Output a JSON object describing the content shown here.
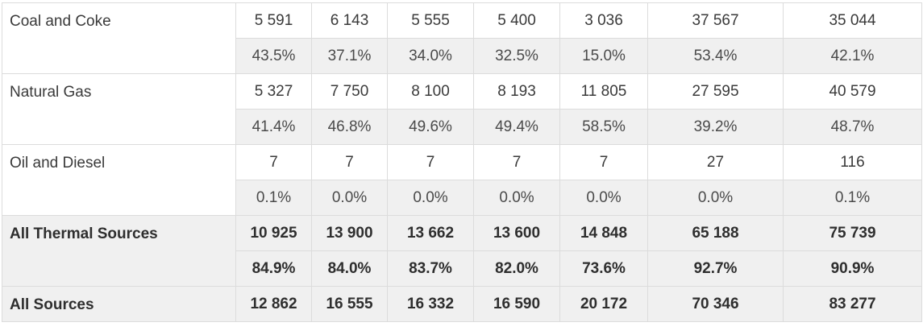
{
  "rows": [
    {
      "label": "Coal and Coke",
      "values": [
        "5 591",
        "6 143",
        "5 555",
        "5 400",
        "3 036",
        "37 567",
        "35 044"
      ],
      "shares": [
        "43.5%",
        "37.1%",
        "34.0%",
        "32.5%",
        "15.0%",
        "53.4%",
        "42.1%"
      ]
    },
    {
      "label": "Natural Gas",
      "values": [
        "5 327",
        "7 750",
        "8 100",
        "8 193",
        "11 805",
        "27 595",
        "40 579"
      ],
      "shares": [
        "41.4%",
        "46.8%",
        "49.6%",
        "49.4%",
        "58.5%",
        "39.2%",
        "48.7%"
      ]
    },
    {
      "label": "Oil and Diesel",
      "values": [
        "7",
        "7",
        "7",
        "7",
        "7",
        "27",
        "116"
      ],
      "shares": [
        "0.1%",
        "0.0%",
        "0.0%",
        "0.0%",
        "0.0%",
        "0.0%",
        "0.1%"
      ]
    },
    {
      "label": "All Thermal Sources",
      "values": [
        "10 925",
        "13 900",
        "13 662",
        "13 600",
        "14 848",
        "65 188",
        "75 739"
      ],
      "shares": [
        "84.9%",
        "84.0%",
        "83.7%",
        "82.0%",
        "73.6%",
        "92.7%",
        "90.9%"
      ]
    },
    {
      "label": "All Sources",
      "values": [
        "12 862",
        "16 555",
        "16 332",
        "16 590",
        "20 172",
        "70 346",
        "83 277"
      ]
    }
  ]
}
